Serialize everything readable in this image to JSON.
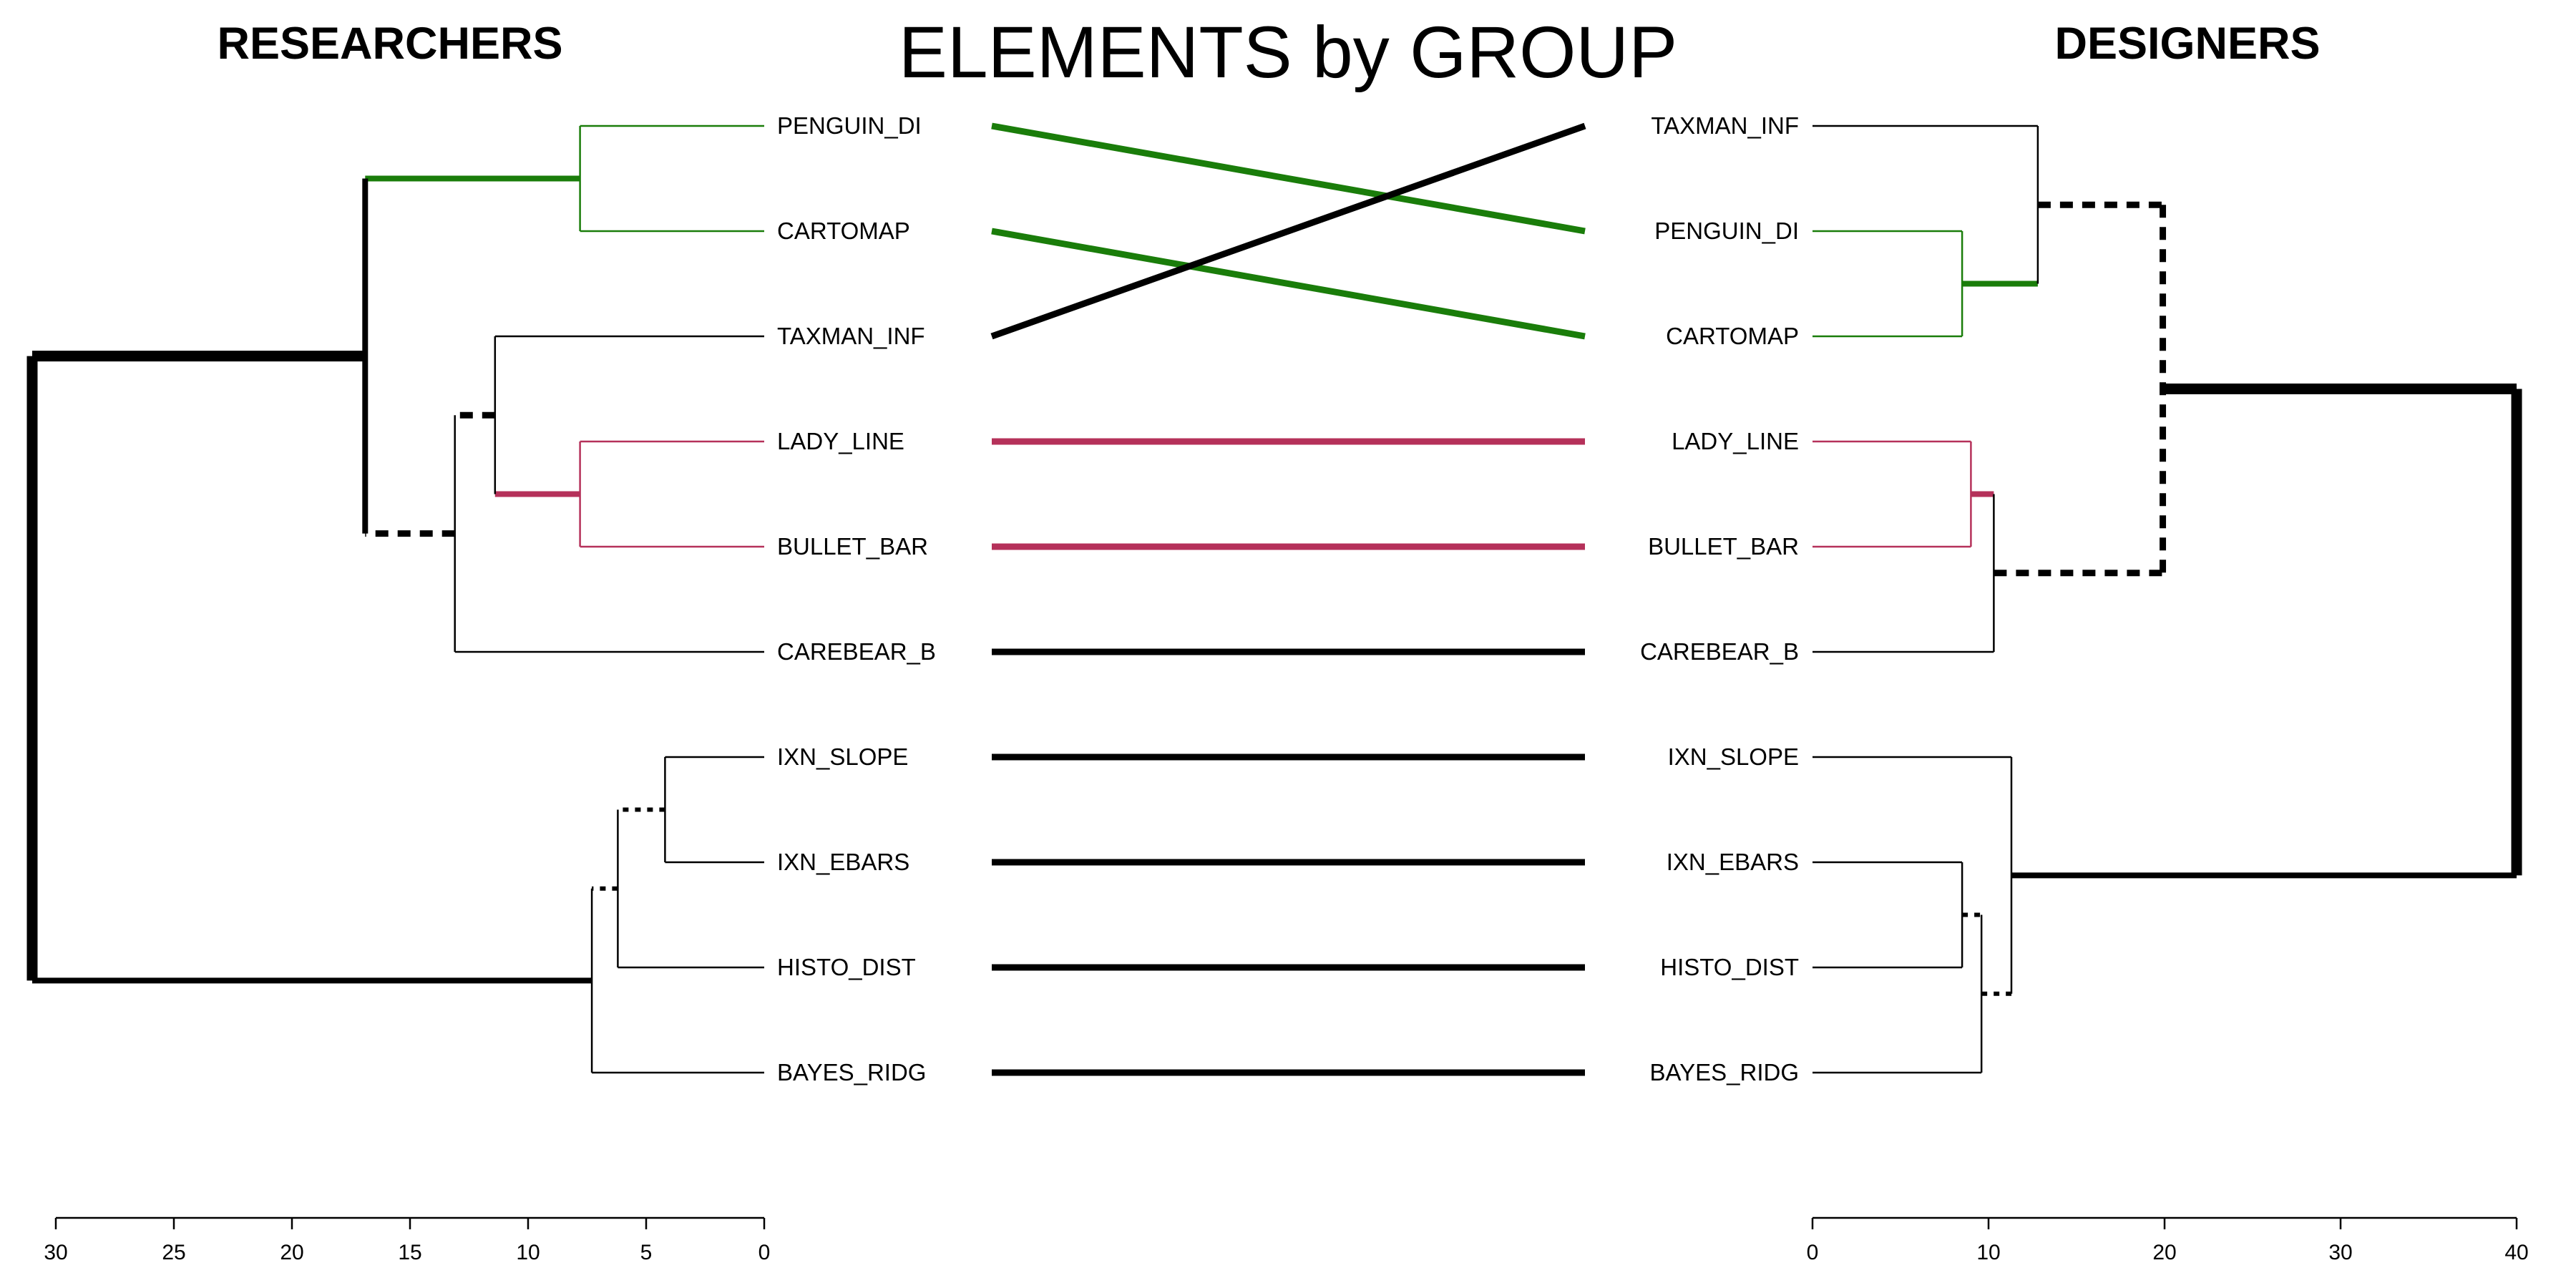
{
  "title": "ELEMENTS by GROUP",
  "chart_data": {
    "type": "tanglegram",
    "colors": {
      "green": "#1a7d0a",
      "crimson": "#b5315a",
      "black": "#000000"
    },
    "left": {
      "title": "RESEARCHERS",
      "axis": {
        "ticks": [
          30,
          25,
          20,
          15,
          10,
          5,
          0
        ],
        "range": [
          30,
          0
        ]
      },
      "leaves": [
        "PENGUIN_DI",
        "CARTOMAP",
        "TAXMAN_INF",
        "LADY_LINE",
        "BULLET_BAR",
        "CAREBEAR_B",
        "IXN_SLOPE",
        "IXN_EBARS",
        "HISTO_DIST",
        "BAYES_RIDG"
      ],
      "merges": [
        {
          "id": "g1",
          "a": "PENGUIN_DI",
          "b": "CARTOMAP",
          "height": 7.8,
          "color": "green"
        },
        {
          "id": "r1",
          "a": "LADY_LINE",
          "b": "BULLET_BAR",
          "height": 7.8,
          "color": "crimson"
        },
        {
          "id": "n2",
          "a": "TAXMAN_INF",
          "b": "r1",
          "height": 11.4
        },
        {
          "id": "n3",
          "a": "n2",
          "b": "CAREBEAR_B",
          "height": 13.1
        },
        {
          "id": "n4",
          "a": "g1",
          "b": "n3",
          "height": 16.9
        },
        {
          "id": "m1",
          "a": "IXN_SLOPE",
          "b": "IXN_EBARS",
          "height": 4.2
        },
        {
          "id": "m2",
          "a": "m1",
          "b": "HISTO_DIST",
          "height": 6.2
        },
        {
          "id": "m3",
          "a": "m2",
          "b": "BAYES_RIDG",
          "height": 7.3
        },
        {
          "id": "root",
          "a": "n4",
          "b": "m3",
          "height": 31.0
        }
      ]
    },
    "right": {
      "title": "DESIGNERS",
      "axis": {
        "ticks": [
          0,
          10,
          20,
          30,
          40
        ],
        "range": [
          0,
          40
        ]
      },
      "leaves": [
        "TAXMAN_INF",
        "PENGUIN_DI",
        "CARTOMAP",
        "LADY_LINE",
        "BULLET_BAR",
        "CAREBEAR_B",
        "IXN_SLOPE",
        "IXN_EBARS",
        "HISTO_DIST",
        "BAYES_RIDG"
      ],
      "merges": [
        {
          "id": "g1",
          "a": "PENGUIN_DI",
          "b": "CARTOMAP",
          "height": 8.5,
          "color": "green"
        },
        {
          "id": "r1",
          "a": "LADY_LINE",
          "b": "BULLET_BAR",
          "height": 9.0,
          "color": "crimson"
        },
        {
          "id": "c1",
          "a": "TAXMAN_INF",
          "b": "g1",
          "height": 12.8
        },
        {
          "id": "c2",
          "a": "r1",
          "b": "CAREBEAR_B",
          "height": 10.3
        },
        {
          "id": "c3",
          "a": "c1",
          "b": "c2",
          "height": 19.9
        },
        {
          "id": "d1",
          "a": "IXN_EBARS",
          "b": "HISTO_DIST",
          "height": 8.5
        },
        {
          "id": "d2",
          "a": "d1",
          "b": "BAYES_RIDG",
          "height": 9.6
        },
        {
          "id": "d3",
          "a": "IXN_SLOPE",
          "b": "d2",
          "height": 11.3
        },
        {
          "id": "root",
          "a": "c3",
          "b": "d3",
          "height": 40.0
        }
      ]
    },
    "connectors": [
      {
        "leaf": "PENGUIN_DI",
        "color": "green"
      },
      {
        "leaf": "CARTOMAP",
        "color": "green"
      },
      {
        "leaf": "TAXMAN_INF",
        "color": "black"
      },
      {
        "leaf": "LADY_LINE",
        "color": "crimson"
      },
      {
        "leaf": "BULLET_BAR",
        "color": "crimson"
      },
      {
        "leaf": "CAREBEAR_B",
        "color": "black"
      },
      {
        "leaf": "IXN_SLOPE",
        "color": "black"
      },
      {
        "leaf": "IXN_EBARS",
        "color": "black"
      },
      {
        "leaf": "HISTO_DIST",
        "color": "black"
      },
      {
        "leaf": "BAYES_RIDG",
        "color": "black"
      }
    ],
    "styles": {
      "left": {
        "g1": {
          "children": "thin",
          "link": "thick"
        },
        "r1": {
          "children": "thin",
          "link": "thick"
        },
        "n2": {
          "children": "thin",
          "link": "dashed-thick"
        },
        "n3": {
          "children": "thin",
          "link": "dashed-thick"
        },
        "n4": {
          "children": "thick",
          "link": "extra-thick"
        },
        "m1": {
          "children": "thin",
          "link": "dotted"
        },
        "m2": {
          "children": "thin",
          "link": "dotted"
        },
        "m3": {
          "children": "thin",
          "link": "thick"
        },
        "root": {
          "children": "extra-thick"
        }
      },
      "right": {
        "g1": {
          "children": "thin",
          "link": "thick"
        },
        "r1": {
          "children": "thin",
          "link": "thick"
        },
        "c1": {
          "children": "thin",
          "link": "dashed-thick"
        },
        "c2": {
          "children": "thin",
          "link": "dashed-thick"
        },
        "c3": {
          "children": "dashed-thick",
          "link": "extra-thick"
        },
        "d1": {
          "children": "thin",
          "link": "dotted"
        },
        "d2": {
          "children": "thin",
          "link": "dotted"
        },
        "d3": {
          "children": "thin",
          "link": "thick"
        },
        "root": {
          "children": "extra-thick"
        }
      }
    }
  }
}
